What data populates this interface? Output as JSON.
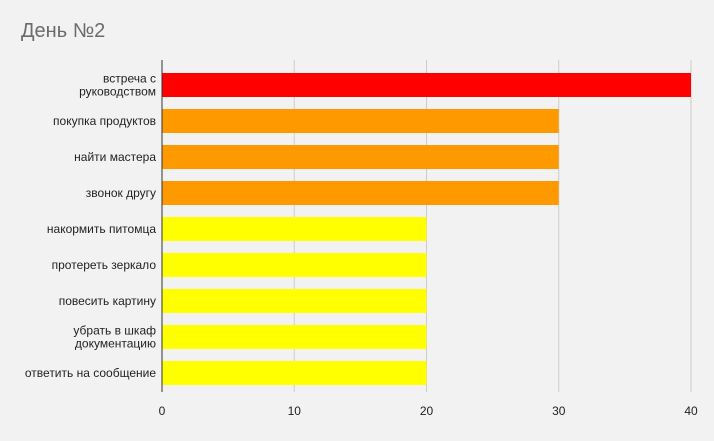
{
  "chart_data": {
    "type": "bar",
    "orientation": "horizontal",
    "title": "День №2",
    "categories": [
      "встреча с руководством",
      "покупка продуктов",
      "найти мастера",
      "звонок другу",
      "накормить питомца",
      "протереть зеркало",
      "повесить картину",
      "убрать в шкаф документацию",
      "ответить на сообщение"
    ],
    "category_lines": [
      [
        "встреча с",
        "руководством"
      ],
      [
        "покупка продуктов"
      ],
      [
        "найти мастера"
      ],
      [
        "звонок другу"
      ],
      [
        "накормить питомца"
      ],
      [
        "протереть зеркало"
      ],
      [
        "повесить картину"
      ],
      [
        "убрать в шкаф",
        "документацию"
      ],
      [
        "ответить на сообщение"
      ]
    ],
    "values": [
      40,
      30,
      30,
      30,
      20,
      20,
      20,
      20,
      20
    ],
    "bar_colors": [
      "#ff0000",
      "#ff9900",
      "#ff9900",
      "#ff9900",
      "#ffff00",
      "#ffff00",
      "#ffff00",
      "#ffff00",
      "#ffff00"
    ],
    "xlim": [
      0,
      40
    ],
    "xticks": [
      0,
      10,
      20,
      30,
      40
    ],
    "xlabel": "",
    "ylabel": "",
    "grid": true,
    "legend": "none"
  }
}
